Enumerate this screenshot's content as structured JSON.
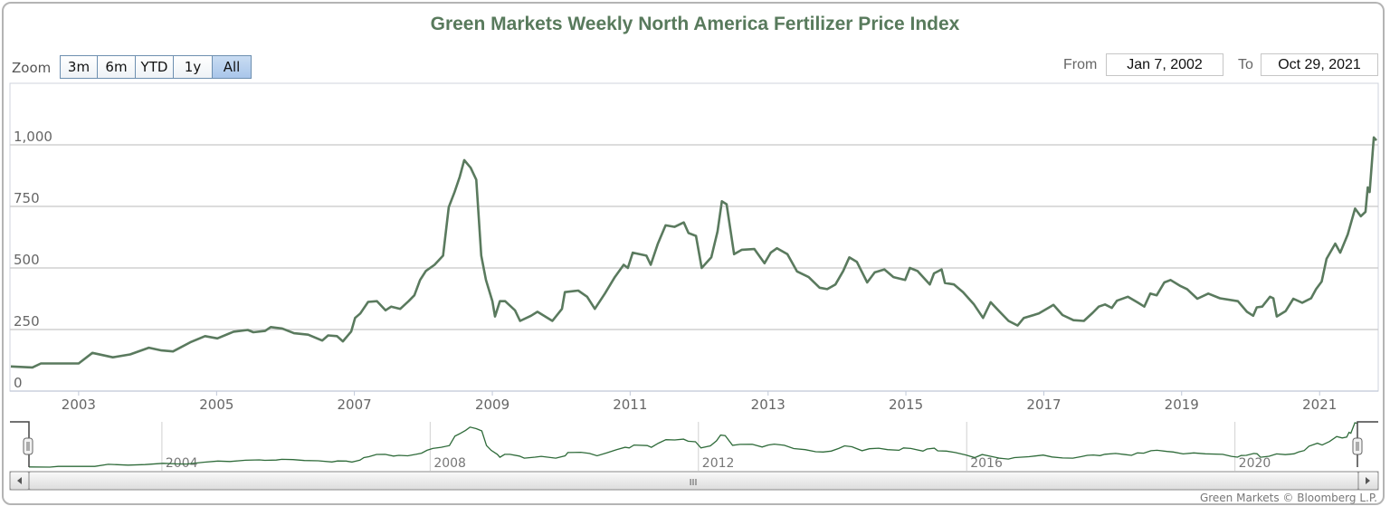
{
  "title": "Green Markets Weekly North America Fertilizer Price Index",
  "zoom": {
    "label": "Zoom",
    "buttons": [
      "3m",
      "6m",
      "YTD",
      "1y",
      "All"
    ],
    "active": "All"
  },
  "range": {
    "from_label": "From",
    "from_value": "Jan 7, 2002",
    "to_label": "To",
    "to_value": "Oct 29, 2021"
  },
  "credit": "Green Markets © Bloomberg L.P.",
  "colors": {
    "title": "#587a5c",
    "series_line": "#5a7a5e",
    "navigator_line": "#2f6b3a",
    "active_button": "#a9c6ea"
  },
  "navigator": {
    "tick_labels": [
      "2004",
      "2008",
      "2012",
      "2016",
      "2020"
    ],
    "scrollbar_grip": "III"
  },
  "chart_data": {
    "type": "line",
    "title": "Green Markets Weekly North America Fertilizer Price Index",
    "xlabel": "",
    "ylabel": "",
    "x_type": "date",
    "xlim": [
      "2002-01-07",
      "2021-10-29"
    ],
    "ylim": [
      0,
      1250
    ],
    "y_ticks": [
      0,
      250,
      500,
      750,
      1000
    ],
    "y_tick_labels": [
      "0",
      "250",
      "500",
      "750",
      "1,000"
    ],
    "x_tick_labels": [
      "2003",
      "2005",
      "2007",
      "2009",
      "2011",
      "2013",
      "2015",
      "2017",
      "2019",
      "2021"
    ],
    "grid": true,
    "legend": "none",
    "points": [
      [
        "2002-01-07",
        100
      ],
      [
        "2002-05-01",
        96
      ],
      [
        "2002-06-15",
        112
      ],
      [
        "2003-01-01",
        112
      ],
      [
        "2003-03-15",
        155
      ],
      [
        "2003-07-01",
        137
      ],
      [
        "2003-10-01",
        149
      ],
      [
        "2004-01-08",
        176
      ],
      [
        "2004-03-15",
        165
      ],
      [
        "2004-05-15",
        161
      ],
      [
        "2004-08-15",
        198
      ],
      [
        "2004-11-01",
        223
      ],
      [
        "2005-01-05",
        214
      ],
      [
        "2005-04-01",
        241
      ],
      [
        "2005-06-15",
        248
      ],
      [
        "2005-07-15",
        239
      ],
      [
        "2005-09-15",
        244
      ],
      [
        "2005-10-15",
        260
      ],
      [
        "2005-12-15",
        254
      ],
      [
        "2006-02-15",
        235
      ],
      [
        "2006-05-01",
        229
      ],
      [
        "2006-07-15",
        205
      ],
      [
        "2006-08-15",
        226
      ],
      [
        "2006-10-01",
        223
      ],
      [
        "2006-11-01",
        202
      ],
      [
        "2006-12-15",
        242
      ],
      [
        "2007-01-05",
        297
      ],
      [
        "2007-02-01",
        315
      ],
      [
        "2007-03-15",
        362
      ],
      [
        "2007-05-01",
        365
      ],
      [
        "2007-06-15",
        328
      ],
      [
        "2007-07-15",
        343
      ],
      [
        "2007-09-01",
        334
      ],
      [
        "2007-10-15",
        365
      ],
      [
        "2007-11-15",
        389
      ],
      [
        "2007-12-15",
        451
      ],
      [
        "2008-01-15",
        488
      ],
      [
        "2008-03-01",
        513
      ],
      [
        "2008-04-15",
        550
      ],
      [
        "2008-05-15",
        747
      ],
      [
        "2008-06-15",
        808
      ],
      [
        "2008-07-12",
        870
      ],
      [
        "2008-08-05",
        938
      ],
      [
        "2008-09-08",
        907
      ],
      [
        "2008-10-08",
        858
      ],
      [
        "2008-11-03",
        550
      ],
      [
        "2008-11-28",
        451
      ],
      [
        "2009-01-01",
        365
      ],
      [
        "2009-01-15",
        303
      ],
      [
        "2009-02-10",
        365
      ],
      [
        "2009-03-10",
        365
      ],
      [
        "2009-05-01",
        328
      ],
      [
        "2009-05-28",
        285
      ],
      [
        "2009-07-25",
        306
      ],
      [
        "2009-08-28",
        322
      ],
      [
        "2009-11-15",
        285
      ],
      [
        "2010-01-05",
        334
      ],
      [
        "2010-01-20",
        402
      ],
      [
        "2010-04-01",
        408
      ],
      [
        "2010-05-18",
        383
      ],
      [
        "2010-06-28",
        334
      ],
      [
        "2010-08-20",
        396
      ],
      [
        "2010-10-12",
        463
      ],
      [
        "2010-11-28",
        513
      ],
      [
        "2010-12-20",
        500
      ],
      [
        "2011-01-15",
        562
      ],
      [
        "2011-03-28",
        550
      ],
      [
        "2011-04-20",
        513
      ],
      [
        "2011-05-28",
        599
      ],
      [
        "2011-07-08",
        673
      ],
      [
        "2011-08-25",
        667
      ],
      [
        "2011-10-12",
        685
      ],
      [
        "2011-11-06",
        642
      ],
      [
        "2011-12-16",
        630
      ],
      [
        "2012-01-15",
        500
      ],
      [
        "2012-03-06",
        543
      ],
      [
        "2012-04-08",
        648
      ],
      [
        "2012-05-01",
        771
      ],
      [
        "2012-05-26",
        759
      ],
      [
        "2012-07-05",
        556
      ],
      [
        "2012-08-15",
        574
      ],
      [
        "2012-10-20",
        577
      ],
      [
        "2012-12-13",
        519
      ],
      [
        "2013-01-15",
        562
      ],
      [
        "2013-02-17",
        580
      ],
      [
        "2013-04-13",
        556
      ],
      [
        "2013-06-03",
        486
      ],
      [
        "2013-08-04",
        463
      ],
      [
        "2013-10-01",
        420
      ],
      [
        "2013-11-10",
        414
      ],
      [
        "2013-12-24",
        433
      ],
      [
        "2014-02-03",
        488
      ],
      [
        "2014-03-07",
        543
      ],
      [
        "2014-04-16",
        525
      ],
      [
        "2014-06-10",
        441
      ],
      [
        "2014-07-20",
        482
      ],
      [
        "2014-09-09",
        494
      ],
      [
        "2014-10-27",
        463
      ],
      [
        "2014-12-28",
        451
      ],
      [
        "2015-01-22",
        500
      ],
      [
        "2015-03-03",
        488
      ],
      [
        "2015-05-08",
        433
      ],
      [
        "2015-05-30",
        478
      ],
      [
        "2015-07-09",
        494
      ],
      [
        "2015-07-27",
        439
      ],
      [
        "2015-09-13",
        433
      ],
      [
        "2015-10-31",
        402
      ],
      [
        "2015-12-28",
        352
      ],
      [
        "2016-02-14",
        297
      ],
      [
        "2016-03-25",
        361
      ],
      [
        "2016-05-12",
        322
      ],
      [
        "2016-06-28",
        285
      ],
      [
        "2016-08-15",
        266
      ],
      [
        "2016-09-17",
        297
      ],
      [
        "2016-12-05",
        315
      ],
      [
        "2017-01-30",
        340
      ],
      [
        "2017-02-21",
        350
      ],
      [
        "2017-04-10",
        309
      ],
      [
        "2017-06-07",
        288
      ],
      [
        "2017-08-01",
        285
      ],
      [
        "2017-09-17",
        318
      ],
      [
        "2017-10-19",
        343
      ],
      [
        "2017-11-21",
        352
      ],
      [
        "2017-12-27",
        338
      ],
      [
        "2018-01-23",
        367
      ],
      [
        "2018-03-22",
        383
      ],
      [
        "2018-05-15",
        359
      ],
      [
        "2018-06-17",
        343
      ],
      [
        "2018-07-19",
        396
      ],
      [
        "2018-08-22",
        389
      ],
      [
        "2018-10-01",
        441
      ],
      [
        "2018-11-03",
        451
      ],
      [
        "2018-12-27",
        426
      ],
      [
        "2019-01-30",
        414
      ],
      [
        "2019-03-25",
        375
      ],
      [
        "2019-05-22",
        396
      ],
      [
        "2019-07-23",
        377
      ],
      [
        "2019-10-26",
        365
      ],
      [
        "2019-12-13",
        322
      ],
      [
        "2020-01-15",
        306
      ],
      [
        "2020-02-03",
        340
      ],
      [
        "2020-03-03",
        343
      ],
      [
        "2020-04-13",
        383
      ],
      [
        "2020-05-01",
        377
      ],
      [
        "2020-05-19",
        303
      ],
      [
        "2020-07-05",
        325
      ],
      [
        "2020-08-15",
        375
      ],
      [
        "2020-10-01",
        359
      ],
      [
        "2020-11-17",
        377
      ],
      [
        "2020-12-13",
        414
      ],
      [
        "2021-01-12",
        445
      ],
      [
        "2021-02-07",
        537
      ],
      [
        "2021-03-25",
        599
      ],
      [
        "2021-04-20",
        562
      ],
      [
        "2021-05-30",
        636
      ],
      [
        "2021-07-08",
        741
      ],
      [
        "2021-08-07",
        710
      ],
      [
        "2021-09-01",
        728
      ],
      [
        "2021-09-13",
        827
      ],
      [
        "2021-09-23",
        808
      ],
      [
        "2021-10-15",
        1030
      ],
      [
        "2021-10-29",
        1018
      ]
    ]
  }
}
